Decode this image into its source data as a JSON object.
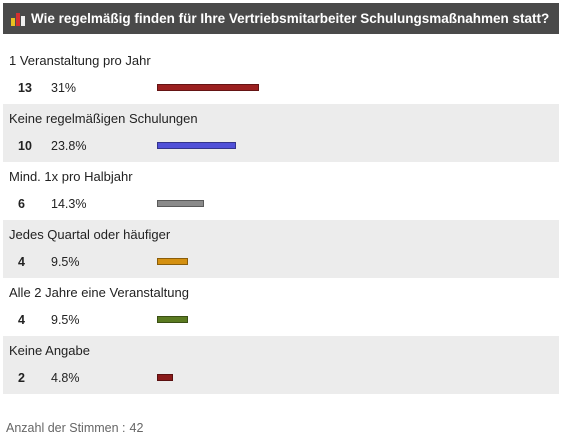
{
  "header": {
    "title": "Wie regelmäßig finden für Ihre Vertriebsmitarbeiter Schulungsmaßnahmen statt?"
  },
  "icon": {
    "name": "poll-bar-chart-icon",
    "colors": [
      "#e8c020",
      "#d43030",
      "#f0f0f0"
    ]
  },
  "chart_data": {
    "type": "bar",
    "title": "Wie regelmäßig finden für Ihre Vertriebsmitarbeiter Schulungsmaßnahmen statt?",
    "categories": [
      "1 Veranstaltung pro Jahr",
      "Keine regelmäßigen Schulungen",
      "Mind. 1x pro Halbjahr",
      "Jedes Quartal oder häufiger",
      "Alle 2 Jahre eine Veranstaltung",
      "Keine Angabe"
    ],
    "counts": [
      13,
      10,
      6,
      4,
      4,
      2
    ],
    "percent_labels": [
      "31%",
      "23.8%",
      "14.3%",
      "9.5%",
      "9.5%",
      "4.8%"
    ],
    "values": [
      31,
      23.8,
      14.3,
      9.5,
      9.5,
      4.8
    ],
    "colors": [
      "#9b2020",
      "#5050d8",
      "#8a8a8a",
      "#d49010",
      "#5a7a20",
      "#8a1a1a"
    ],
    "orientation": "horizontal"
  },
  "footer": {
    "label": "Anzahl der Stimmen :",
    "total": "42"
  }
}
